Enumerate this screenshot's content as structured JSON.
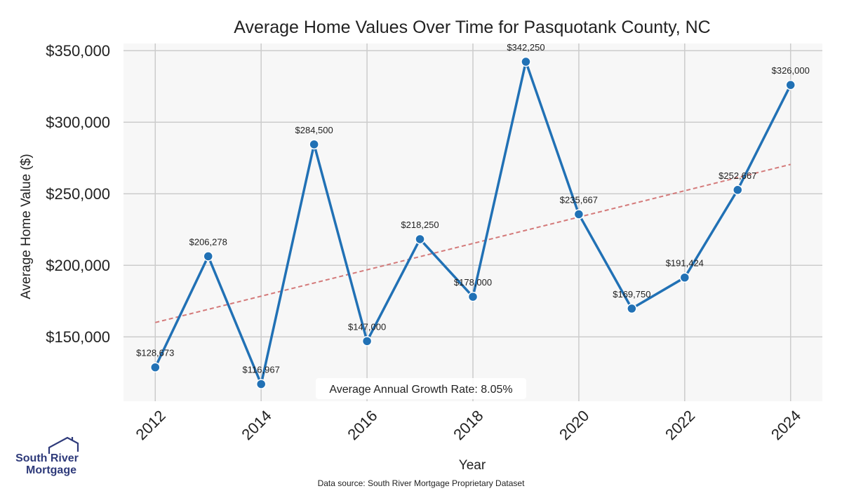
{
  "chart_data": {
    "type": "line",
    "title": "Average Home Values Over Time for Pasquotank County, NC",
    "xlabel": "Year",
    "ylabel": "Average Home Value ($)",
    "x": [
      2012,
      2013,
      2014,
      2015,
      2016,
      2017,
      2018,
      2019,
      2020,
      2021,
      2022,
      2023,
      2024
    ],
    "xticks": [
      2012,
      2014,
      2016,
      2018,
      2020,
      2022,
      2024
    ],
    "xtick_labels": [
      "2012",
      "2014",
      "2016",
      "2018",
      "2020",
      "2022",
      "2024"
    ],
    "xlim": [
      2011.4,
      2024.6
    ],
    "ylim": [
      105000,
      355000
    ],
    "yticks": [
      150000,
      200000,
      250000,
      300000,
      350000
    ],
    "ytick_labels": [
      "$150,000",
      "$200,000",
      "$250,000",
      "$300,000",
      "$350,000"
    ],
    "series": [
      {
        "values": [
          128673,
          206278,
          116967,
          284500,
          147000,
          218250,
          178000,
          342250,
          235667,
          169750,
          191424,
          252667,
          326000
        ],
        "labels": [
          "$128,673",
          "$206,278",
          "$116,967",
          "$284,500",
          "$147,000",
          "$218,250",
          "$178,000",
          "$342,250",
          "$235,667",
          "$169,750",
          "$191,424",
          "$252,667",
          "$326,000"
        ],
        "color": "#2171b5"
      }
    ],
    "trendline": {
      "start": [
        2012,
        160000
      ],
      "end": [
        2024,
        270500
      ],
      "color": "#d47a7a",
      "style": "dashed"
    },
    "annotation": "Average Annual Growth Rate: 8.05%",
    "grid": true,
    "background": "#f7f7f7"
  },
  "footer": {
    "source": "Data source: South River Mortgage Proprietary Dataset"
  },
  "logo": {
    "line1": "South River",
    "line2": "Mortgage",
    "color": "#2e3a7a"
  }
}
